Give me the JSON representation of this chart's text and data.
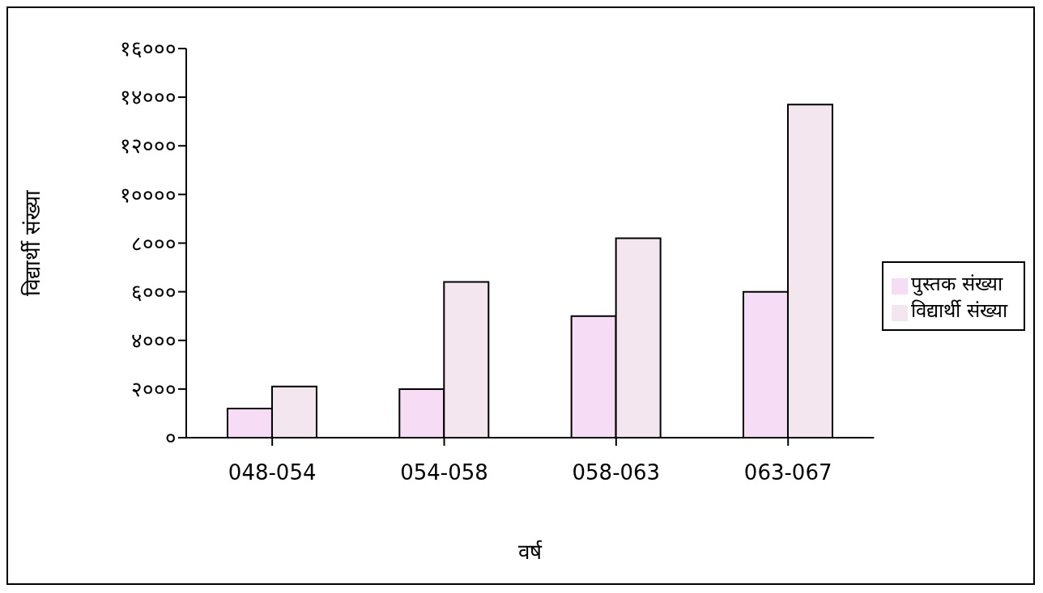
{
  "chart_data": {
    "type": "bar",
    "xlabel": "वर्ष",
    "ylabel": "विद्यार्थी संख्या",
    "categories": [
      "048-054",
      "054-058",
      "058-063",
      "063-067"
    ],
    "series": [
      {
        "name": "पुस्तक संख्या",
        "color": "#f6dcf4",
        "values": [
          1200,
          2000,
          5000,
          6000
        ]
      },
      {
        "name": "विद्यार्थी संख्या",
        "color": "#f4e6ee",
        "values": [
          2100,
          6400,
          8200,
          13700
        ]
      }
    ],
    "ylim": [
      0,
      16000
    ],
    "yticks": [
      {
        "value": 0,
        "label": "०"
      },
      {
        "value": 2000,
        "label": "२०००"
      },
      {
        "value": 4000,
        "label": "४०००"
      },
      {
        "value": 6000,
        "label": "६०००"
      },
      {
        "value": 8000,
        "label": "८०००"
      },
      {
        "value": 10000,
        "label": "१००००"
      },
      {
        "value": 12000,
        "label": "१२०००"
      },
      {
        "value": 14000,
        "label": "१४०००"
      },
      {
        "value": 16000,
        "label": "१६०००"
      }
    ],
    "grid": false,
    "legend": "right"
  }
}
